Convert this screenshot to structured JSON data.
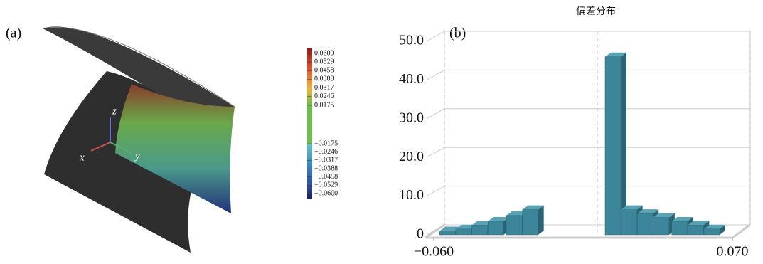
{
  "chart_data": [
    {
      "type": "surface",
      "label": "(a)",
      "axis_labels": {
        "x": "x",
        "y": "y",
        "z": "z"
      },
      "colorbar_ticks": [
        {
          "value": 0.06,
          "label": "0.0600"
        },
        {
          "value": 0.0529,
          "label": "0.0529"
        },
        {
          "value": 0.0458,
          "label": "0.0458"
        },
        {
          "value": 0.0388,
          "label": "0.0388"
        },
        {
          "value": 0.0317,
          "label": "0.0317"
        },
        {
          "value": 0.0246,
          "label": "0.0246"
        },
        {
          "value": 0.0175,
          "label": "0.0175"
        },
        {
          "value": -0.0175,
          "label": "−0.0175"
        },
        {
          "value": -0.0246,
          "label": "−0.0246"
        },
        {
          "value": -0.0317,
          "label": "−0.0317"
        },
        {
          "value": -0.0388,
          "label": "−0.0388"
        },
        {
          "value": -0.0458,
          "label": "−0.0458"
        },
        {
          "value": -0.0529,
          "label": "−0.0529"
        },
        {
          "value": -0.06,
          "label": "−0.0600"
        }
      ]
    },
    {
      "type": "bar3d",
      "title": "偏差分布",
      "label": "(b)",
      "color": "#3d8599",
      "x": [
        -0.054,
        -0.047,
        -0.04,
        -0.033,
        -0.025,
        -0.018,
        0.018,
        0.025,
        0.032,
        0.039,
        0.047,
        0.054,
        0.061
      ],
      "values": [
        1,
        1.5,
        2.5,
        3.5,
        5,
        6.5,
        46,
        6.5,
        5.5,
        4.5,
        3.5,
        2.5,
        1.5
      ],
      "xlim": [
        -0.06,
        0.07
      ],
      "xticks": [
        {
          "value": -0.06,
          "label": "−0.060"
        },
        {
          "value": 0.07,
          "label": "0.070"
        }
      ],
      "ylim": [
        0,
        50
      ],
      "yticks": [
        0,
        {
          "value": 10,
          "label": "10.0"
        },
        {
          "value": 20,
          "label": "20.0"
        },
        {
          "value": 30,
          "label": "30.0"
        },
        {
          "value": 40,
          "label": "40.0"
        },
        {
          "value": 50,
          "label": "50.0"
        }
      ],
      "grid": true
    }
  ]
}
